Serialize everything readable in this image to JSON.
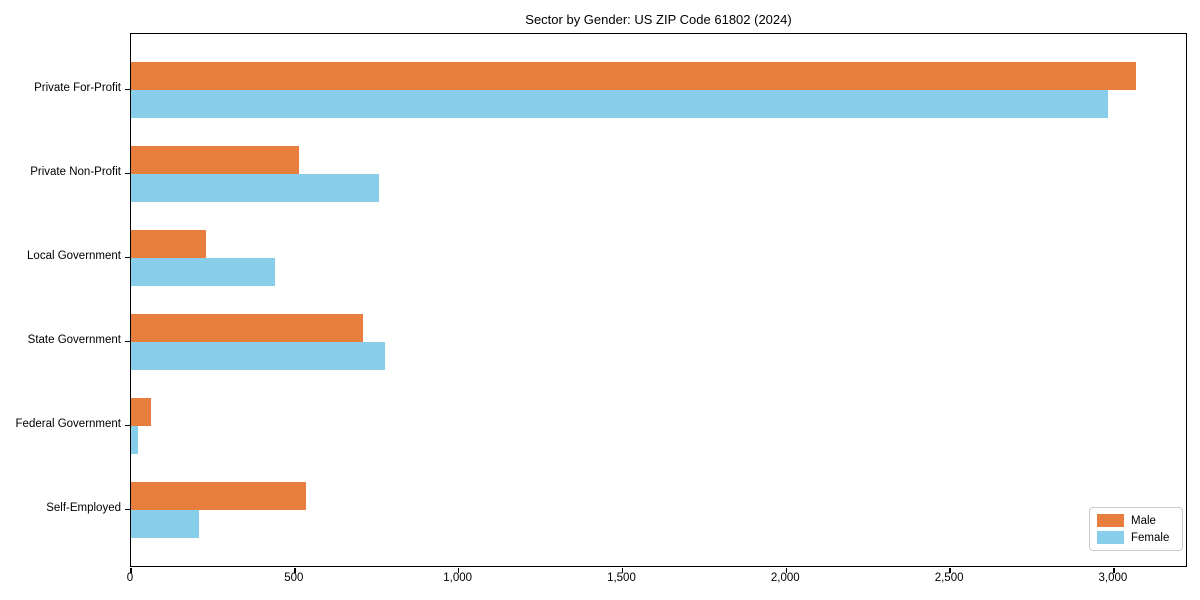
{
  "chart_data": {
    "type": "bar",
    "orientation": "horizontal",
    "title": "Sector by Gender: US ZIP Code 61802 (2024)",
    "categories": [
      "Private For-Profit",
      "Private Non-Profit",
      "Local Government",
      "State Government",
      "Federal Government",
      "Self-Employed"
    ],
    "series": [
      {
        "name": "Male",
        "color": "#e87e3e",
        "values": [
          3067,
          514,
          230,
          708,
          62,
          535
        ]
      },
      {
        "name": "Female",
        "color": "#87ceeb",
        "values": [
          2981,
          757,
          440,
          775,
          22,
          207
        ]
      }
    ],
    "xlabel": "",
    "ylabel": "",
    "xlim": [
      0,
      3220
    ],
    "xticks": [
      0,
      500,
      1000,
      1500,
      2000,
      2500,
      3000
    ],
    "xtick_labels": [
      "0",
      "500",
      "1,000",
      "1,500",
      "2,000",
      "2,500",
      "3,000"
    ],
    "legend_position": "lower right",
    "grid": false
  }
}
